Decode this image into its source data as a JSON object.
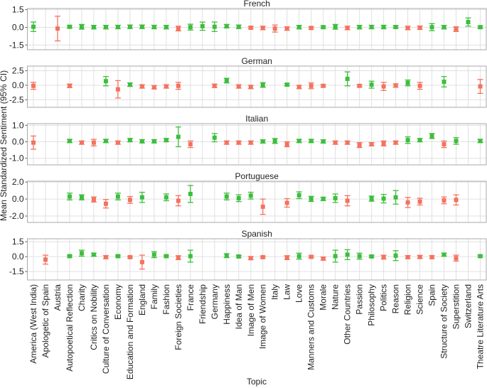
{
  "chart_data": {
    "type": "errorbar",
    "ylabel": "Mean Standardized Sentiment (95% CI)",
    "xlabel": "Topic",
    "colors": {
      "positive": "#3dbe3d",
      "negative": "#f4725e"
    },
    "grid": true,
    "categories": [
      "America (West India)",
      "Apologetic of Spain",
      "Austria",
      "Autopoetical Reflection",
      "Charity",
      "Critics on Nobility",
      "Culture of Conversation",
      "Economy",
      "Education and Formation",
      "England",
      "Family",
      "Fashion",
      "Foreign Societies",
      "France",
      "Friendship",
      "Germany",
      "Happiness",
      "Idea of Man",
      "Image of Men",
      "Image of Women",
      "Italy",
      "Law",
      "Love",
      "Manners and Customs",
      "Morale",
      "Nature",
      "Other Countries",
      "Passion",
      "Philosophy",
      "Politics",
      "Reason",
      "Religion",
      "Science",
      "Spain",
      "Structure of Society",
      "Superstition",
      "Switzerland",
      "Theatre Literature Arts"
    ],
    "panels": [
      {
        "title": "French",
        "ylim": [
          -1.9,
          1.6
        ],
        "yticks": [
          -1.5,
          {
            "value": 0,
            "label": "0.0"
          },
          1.5
        ],
        "values": [
          0.05,
          null,
          -0.1,
          0.05,
          0.05,
          0.02,
          0.02,
          0.03,
          0.05,
          0.05,
          0.03,
          0.02,
          -0.1,
          0.02,
          0.1,
          0.05,
          0.1,
          0.05,
          -0.03,
          -0.05,
          -0.1,
          -0.1,
          0.02,
          -0.05,
          0.02,
          0.05,
          -0.05,
          0.02,
          0.03,
          0.03,
          0.03,
          -0.05,
          -0.03,
          0.02,
          0.02,
          -0.15,
          0.45,
          0.02
        ],
        "errors": [
          0.4,
          null,
          1.05,
          0.1,
          0.2,
          0.15,
          0.15,
          0.15,
          0.15,
          0.15,
          0.15,
          0.15,
          0.2,
          0.25,
          0.35,
          0.4,
          0.15,
          0.15,
          0.1,
          0.15,
          0.3,
          0.15,
          0.15,
          0.1,
          0.1,
          0.2,
          0.15,
          0.15,
          0.15,
          0.15,
          0.1,
          0.15,
          0.15,
          0.3,
          0.15,
          0.2,
          0.35,
          0.1
        ]
      },
      {
        "title": "German",
        "ylim": [
          -3.8,
          3.3
        ],
        "yticks": [
          -2.5,
          {
            "value": 0,
            "label": "0.0"
          },
          2.5
        ],
        "values": [
          -0.1,
          null,
          null,
          -0.1,
          null,
          null,
          0.7,
          -0.7,
          0.1,
          -0.2,
          -0.35,
          -0.2,
          -0.1,
          null,
          null,
          -0.1,
          0.8,
          -0.2,
          -0.3,
          0.05,
          null,
          0.1,
          -0.3,
          -0.1,
          -0.1,
          null,
          1.1,
          -0.1,
          0.1,
          -0.2,
          -0.05,
          0.4,
          -0.1,
          null,
          0.6,
          null,
          null,
          -0.2
        ],
        "errors": [
          0.6,
          null,
          null,
          0.3,
          null,
          null,
          0.8,
          1.5,
          0.3,
          0.3,
          0.3,
          0.3,
          0.6,
          null,
          null,
          0.3,
          0.4,
          0.3,
          0.3,
          0.4,
          null,
          0.2,
          0.3,
          0.5,
          0.2,
          null,
          1.2,
          0.2,
          0.6,
          0.7,
          0.3,
          0.5,
          0.6,
          null,
          0.9,
          null,
          null,
          1.2
        ]
      },
      {
        "title": "Italian",
        "ylim": [
          -1.4,
          1.1
        ],
        "yticks": [
          {
            "value": -1,
            "label": "-1.0"
          },
          {
            "value": 0,
            "label": "0.0"
          },
          {
            "value": 1,
            "label": "1.0"
          }
        ],
        "values": [
          -0.05,
          null,
          null,
          0.05,
          -0.05,
          -0.05,
          0.05,
          -0.05,
          0.1,
          0.03,
          0.03,
          0.1,
          0.3,
          -0.15,
          null,
          0.25,
          -0.05,
          -0.05,
          -0.05,
          0.02,
          0.05,
          -0.15,
          0.05,
          0.05,
          0.02,
          -0.05,
          -0.05,
          -0.2,
          -0.15,
          -0.1,
          -0.05,
          0.1,
          0.1,
          0.35,
          -0.15,
          0.05,
          null,
          0.05
        ],
        "errors": [
          0.4,
          null,
          null,
          0.1,
          0.1,
          0.2,
          0.1,
          0.1,
          0.1,
          0.1,
          0.1,
          0.1,
          0.6,
          0.2,
          null,
          0.25,
          0.1,
          0.1,
          0.1,
          0.1,
          0.15,
          0.15,
          0.1,
          0.1,
          0.1,
          0.1,
          0.1,
          0.15,
          0.1,
          0.15,
          0.1,
          0.2,
          0.1,
          0.15,
          0.2,
          0.2,
          null,
          0.1
        ]
      },
      {
        "title": "Portuguese",
        "ylim": [
          -2.75,
          2.1
        ],
        "yticks": [
          {
            "value": -2,
            "label": "-2.0"
          },
          {
            "value": 0,
            "label": "0.0"
          },
          {
            "value": 2,
            "label": "2.0"
          }
        ],
        "values": [
          null,
          null,
          null,
          0.3,
          0.2,
          -0.05,
          -0.55,
          0.3,
          -0.1,
          0.2,
          null,
          0.2,
          -0.2,
          0.6,
          null,
          null,
          0.3,
          0.1,
          0.4,
          -0.9,
          null,
          -0.45,
          0.45,
          0.02,
          0.02,
          0.1,
          -0.2,
          null,
          0.05,
          0.05,
          0.2,
          -0.4,
          -0.3,
          null,
          -0.15,
          -0.1,
          null,
          null
        ],
        "errors": [
          null,
          null,
          null,
          0.4,
          0.3,
          0.3,
          0.5,
          0.4,
          0.4,
          0.6,
          null,
          0.4,
          0.6,
          1.0,
          null,
          null,
          0.4,
          0.4,
          0.4,
          0.9,
          null,
          0.5,
          0.4,
          0.3,
          0.2,
          0.5,
          0.6,
          null,
          0.3,
          0.5,
          0.8,
          0.6,
          0.4,
          null,
          0.4,
          0.6,
          null,
          null
        ]
      },
      {
        "title": "Spanish",
        "ylim": [
          -2.35,
          1.8
        ],
        "yticks": [
          -1.5,
          {
            "value": 0,
            "label": "0.0"
          },
          1.5
        ],
        "values": [
          null,
          -0.3,
          null,
          0.05,
          0.35,
          0.2,
          -0.05,
          0.05,
          -0.05,
          -0.55,
          0.2,
          0.05,
          -0.1,
          0.05,
          null,
          null,
          0.1,
          0.02,
          -0.15,
          -0.05,
          null,
          -0.1,
          0.05,
          -0.02,
          -0.2,
          0.05,
          0.2,
          0.05,
          0.02,
          -0.05,
          0.1,
          -0.05,
          -0.03,
          -0.05,
          0.2,
          -0.15,
          null,
          0.05
        ],
        "errors": [
          null,
          0.45,
          null,
          0.1,
          0.3,
          0.15,
          0.15,
          0.1,
          0.1,
          0.7,
          0.3,
          0.1,
          0.2,
          0.6,
          null,
          null,
          0.2,
          0.1,
          0.15,
          0.1,
          null,
          0.2,
          0.3,
          0.1,
          0.15,
          0.6,
          0.5,
          0.3,
          0.1,
          0.2,
          0.5,
          0.15,
          0.15,
          0.15,
          0.15,
          0.3,
          null,
          0.1
        ]
      }
    ]
  }
}
